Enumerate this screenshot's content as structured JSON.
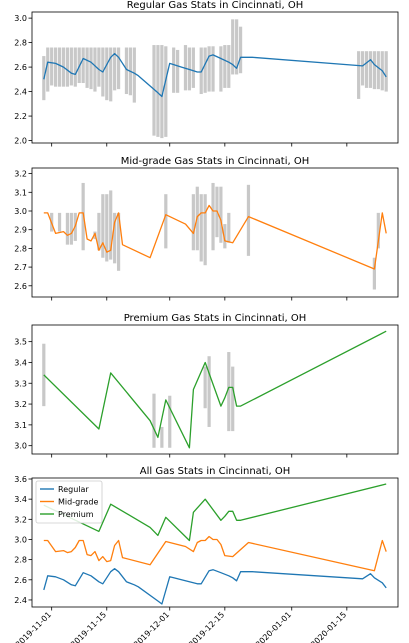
{
  "colors": {
    "regular": "#1f77b4",
    "midgrade": "#ff7f0e",
    "premium": "#2ca02c",
    "range_bar": "#c8c8c8"
  },
  "x_ticks": [
    "2019-11-01",
    "2019-11-15",
    "2019-12-01",
    "2019-12-15",
    "2020-01-01",
    "2020-01-15"
  ],
  "chart_data": [
    {
      "type": "line",
      "title": "Regular Gas Stats in Cincinnati, OH",
      "xlabel": "",
      "ylabel": "",
      "ylim": [
        1.98,
        3.05
      ],
      "yticks": [
        2.0,
        2.2,
        2.4,
        2.6,
        2.8,
        3.0
      ],
      "ytick_labels": [
        "2.0",
        "2.2",
        "2.4",
        "2.6",
        "2.8",
        "3.0"
      ],
      "grid": false,
      "series": [
        {
          "color": "#1f77b4",
          "points": [
            [
              "2019-10-30",
              2.5
            ],
            [
              "2019-10-31",
              2.64
            ],
            [
              "2019-11-02",
              2.63
            ],
            [
              "2019-11-04",
              2.6
            ],
            [
              "2019-11-06",
              2.55
            ],
            [
              "2019-11-07",
              2.54
            ],
            [
              "2019-11-09",
              2.67
            ],
            [
              "2019-11-11",
              2.64
            ],
            [
              "2019-11-13",
              2.58
            ],
            [
              "2019-11-14",
              2.56
            ],
            [
              "2019-11-16",
              2.68
            ],
            [
              "2019-11-17",
              2.71
            ],
            [
              "2019-11-18",
              2.68
            ],
            [
              "2019-11-20",
              2.58
            ],
            [
              "2019-11-22",
              2.55
            ],
            [
              "2019-11-23",
              2.53
            ],
            [
              "2019-11-28",
              2.39
            ],
            [
              "2019-11-29",
              2.36
            ],
            [
              "2019-12-01",
              2.63
            ],
            [
              "2019-12-02",
              2.62
            ],
            [
              "2019-12-04",
              2.6
            ],
            [
              "2019-12-06",
              2.58
            ],
            [
              "2019-12-08",
              2.56
            ],
            [
              "2019-12-09",
              2.56
            ],
            [
              "2019-12-11",
              2.69
            ],
            [
              "2019-12-12",
              2.7
            ],
            [
              "2019-12-14",
              2.67
            ],
            [
              "2019-12-16",
              2.64
            ],
            [
              "2019-12-17",
              2.62
            ],
            [
              "2019-12-18",
              2.59
            ],
            [
              "2019-12-19",
              2.68
            ],
            [
              "2019-12-22",
              2.68
            ],
            [
              "2020-01-19",
              2.61
            ],
            [
              "2020-01-21",
              2.66
            ],
            [
              "2020-01-22",
              2.62
            ],
            [
              "2020-01-24",
              2.57
            ],
            [
              "2020-01-25",
              2.52
            ]
          ]
        }
      ],
      "ranges": [
        [
          "2019-10-30",
          2.33,
          2.69
        ],
        [
          "2019-10-31",
          2.4,
          2.76
        ],
        [
          "2019-11-01",
          2.45,
          2.76
        ],
        [
          "2019-11-02",
          2.44,
          2.76
        ],
        [
          "2019-11-03",
          2.44,
          2.76
        ],
        [
          "2019-11-04",
          2.44,
          2.76
        ],
        [
          "2019-11-05",
          2.44,
          2.76
        ],
        [
          "2019-11-06",
          2.45,
          2.76
        ],
        [
          "2019-11-07",
          2.44,
          2.76
        ],
        [
          "2019-11-08",
          2.47,
          2.76
        ],
        [
          "2019-11-09",
          2.47,
          2.76
        ],
        [
          "2019-11-10",
          2.43,
          2.76
        ],
        [
          "2019-11-11",
          2.42,
          2.76
        ],
        [
          "2019-11-12",
          2.4,
          2.76
        ],
        [
          "2019-11-13",
          2.44,
          2.76
        ],
        [
          "2019-11-14",
          2.36,
          2.76
        ],
        [
          "2019-11-15",
          2.33,
          2.76
        ],
        [
          "2019-11-16",
          2.32,
          2.76
        ],
        [
          "2019-11-17",
          2.41,
          2.76
        ],
        [
          "2019-11-18",
          2.42,
          2.76
        ],
        [
          "2019-11-20",
          2.38,
          2.76
        ],
        [
          "2019-11-21",
          2.37,
          2.76
        ],
        [
          "2019-11-22",
          2.31,
          2.76
        ],
        [
          "2019-11-27",
          2.04,
          2.78
        ],
        [
          "2019-11-28",
          2.03,
          2.78
        ],
        [
          "2019-11-29",
          2.02,
          2.78
        ],
        [
          "2019-11-30",
          2.03,
          2.77
        ],
        [
          "2019-12-02",
          2.39,
          2.76
        ],
        [
          "2019-12-03",
          2.39,
          2.74
        ],
        [
          "2019-12-05",
          2.41,
          2.78
        ],
        [
          "2019-12-06",
          2.41,
          2.76
        ],
        [
          "2019-12-07",
          2.43,
          2.76
        ],
        [
          "2019-12-09",
          2.38,
          2.76
        ],
        [
          "2019-12-10",
          2.39,
          2.76
        ],
        [
          "2019-12-11",
          2.4,
          2.77
        ],
        [
          "2019-12-12",
          2.4,
          2.77
        ],
        [
          "2019-12-14",
          2.4,
          2.77
        ],
        [
          "2019-12-15",
          2.43,
          2.78
        ],
        [
          "2019-12-16",
          2.43,
          2.78
        ],
        [
          "2019-12-17",
          2.54,
          2.99
        ],
        [
          "2019-12-18",
          2.54,
          2.99
        ],
        [
          "2019-12-19",
          2.55,
          2.93
        ],
        [
          "2020-01-18",
          2.34,
          2.73
        ],
        [
          "2020-01-19",
          2.45,
          2.73
        ],
        [
          "2020-01-20",
          2.43,
          2.73
        ],
        [
          "2020-01-21",
          2.43,
          2.73
        ],
        [
          "2020-01-22",
          2.42,
          2.73
        ],
        [
          "2020-01-23",
          2.42,
          2.73
        ],
        [
          "2020-01-24",
          2.41,
          2.73
        ],
        [
          "2020-01-25",
          2.4,
          2.73
        ]
      ]
    },
    {
      "type": "line",
      "title": "Mid-grade Gas Stats in Cincinnati, OH",
      "xlabel": "",
      "ylabel": "",
      "ylim": [
        2.54,
        3.23
      ],
      "yticks": [
        2.6,
        2.7,
        2.8,
        2.9,
        3.0,
        3.1,
        3.2
      ],
      "ytick_labels": [
        "2.6",
        "2.7",
        "2.8",
        "2.9",
        "3.0",
        "3.1",
        "3.2"
      ],
      "grid": false,
      "series": [
        {
          "color": "#ff7f0e",
          "points": [
            [
              "2019-10-30",
              2.99
            ],
            [
              "2019-10-31",
              2.99
            ],
            [
              "2019-11-02",
              2.88
            ],
            [
              "2019-11-04",
              2.89
            ],
            [
              "2019-11-05",
              2.87
            ],
            [
              "2019-11-06",
              2.88
            ],
            [
              "2019-11-07",
              2.92
            ],
            [
              "2019-11-08",
              2.99
            ],
            [
              "2019-11-09",
              2.99
            ],
            [
              "2019-11-10",
              2.85
            ],
            [
              "2019-11-11",
              2.84
            ],
            [
              "2019-11-12",
              2.88
            ],
            [
              "2019-11-13",
              2.79
            ],
            [
              "2019-11-14",
              2.83
            ],
            [
              "2019-11-15",
              2.78
            ],
            [
              "2019-11-16",
              2.79
            ],
            [
              "2019-11-17",
              2.94
            ],
            [
              "2019-11-18",
              2.99
            ],
            [
              "2019-11-19",
              2.82
            ],
            [
              "2019-11-26",
              2.75
            ],
            [
              "2019-11-30",
              2.98
            ],
            [
              "2019-12-04",
              2.94
            ],
            [
              "2019-12-05",
              2.93
            ],
            [
              "2019-12-07",
              2.88
            ],
            [
              "2019-12-08",
              2.97
            ],
            [
              "2019-12-09",
              2.99
            ],
            [
              "2019-12-10",
              2.99
            ],
            [
              "2019-12-11",
              3.03
            ],
            [
              "2019-12-12",
              3.0
            ],
            [
              "2019-12-13",
              3.0
            ],
            [
              "2019-12-14",
              2.95
            ],
            [
              "2019-12-15",
              2.84
            ],
            [
              "2019-12-17",
              2.83
            ],
            [
              "2019-12-21",
              2.97
            ],
            [
              "2020-01-22",
              2.69
            ],
            [
              "2020-01-24",
              2.99
            ],
            [
              "2020-01-25",
              2.88
            ]
          ]
        }
      ],
      "ranges": [
        [
          "2019-11-01",
          2.89,
          2.99
        ],
        [
          "2019-11-03",
          2.89,
          2.99
        ],
        [
          "2019-11-05",
          2.82,
          2.99
        ],
        [
          "2019-11-06",
          2.82,
          2.99
        ],
        [
          "2019-11-07",
          2.84,
          2.99
        ],
        [
          "2019-11-09",
          2.79,
          3.15
        ],
        [
          "2019-11-12",
          2.85,
          2.89
        ],
        [
          "2019-11-13",
          2.79,
          2.99
        ],
        [
          "2019-11-14",
          2.75,
          3.09
        ],
        [
          "2019-11-15",
          2.73,
          3.09
        ],
        [
          "2019-11-16",
          2.74,
          3.11
        ],
        [
          "2019-11-17",
          2.72,
          2.99
        ],
        [
          "2019-11-18",
          2.68,
          2.99
        ],
        [
          "2019-11-30",
          2.8,
          3.09
        ],
        [
          "2019-12-07",
          2.79,
          3.09
        ],
        [
          "2019-12-08",
          2.79,
          3.13
        ],
        [
          "2019-12-09",
          2.73,
          3.09
        ],
        [
          "2019-12-10",
          2.71,
          3.09
        ],
        [
          "2019-12-12",
          2.79,
          3.15
        ],
        [
          "2019-12-13",
          2.86,
          3.13
        ],
        [
          "2019-12-14",
          2.83,
          3.13
        ],
        [
          "2019-12-15",
          2.8,
          2.93
        ],
        [
          "2019-12-16",
          2.83,
          2.99
        ],
        [
          "2019-12-21",
          2.76,
          3.14
        ],
        [
          "2020-01-22",
          2.58,
          2.75
        ],
        [
          "2020-01-23",
          2.8,
          2.99
        ]
      ]
    },
    {
      "type": "line",
      "title": "Premium Gas Stats in Cincinnati, OH",
      "xlabel": "",
      "ylabel": "",
      "ylim": [
        2.96,
        3.58
      ],
      "yticks": [
        3.0,
        3.1,
        3.2,
        3.3,
        3.4,
        3.5
      ],
      "ytick_labels": [
        "3.0",
        "3.1",
        "3.2",
        "3.3",
        "3.4",
        "3.5"
      ],
      "grid": false,
      "series": [
        {
          "color": "#2ca02c",
          "points": [
            [
              "2019-10-30",
              3.34
            ],
            [
              "2019-11-13",
              3.08
            ],
            [
              "2019-11-16",
              3.35
            ],
            [
              "2019-11-26",
              3.12
            ],
            [
              "2019-11-28",
              3.04
            ],
            [
              "2019-11-30",
              3.22
            ],
            [
              "2019-12-06",
              2.99
            ],
            [
              "2019-12-07",
              3.27
            ],
            [
              "2019-12-10",
              3.4
            ],
            [
              "2019-12-14",
              3.19
            ],
            [
              "2019-12-15",
              3.23
            ],
            [
              "2019-12-16",
              3.28
            ],
            [
              "2019-12-17",
              3.28
            ],
            [
              "2019-12-18",
              3.19
            ],
            [
              "2019-12-19",
              3.19
            ],
            [
              "2020-01-25",
              3.55
            ]
          ]
        }
      ],
      "ranges": [
        [
          "2019-10-30",
          3.19,
          3.49
        ],
        [
          "2019-11-27",
          2.99,
          3.25
        ],
        [
          "2019-11-29",
          2.99,
          3.09
        ],
        [
          "2019-12-01",
          2.99,
          3.24
        ],
        [
          "2019-12-10",
          3.18,
          3.38
        ],
        [
          "2019-12-11",
          3.09,
          3.43
        ],
        [
          "2019-12-16",
          3.07,
          3.45
        ],
        [
          "2019-12-17",
          3.07,
          3.38
        ]
      ]
    },
    {
      "type": "line",
      "title": "All Gas Stats in Cincinnati, OH",
      "xlabel": "",
      "ylabel": "",
      "ylim": [
        2.33,
        3.61
      ],
      "yticks": [
        2.4,
        2.6,
        2.8,
        3.0,
        3.2,
        3.4,
        3.6
      ],
      "ytick_labels": [
        "2.4",
        "2.6",
        "2.8",
        "3.0",
        "3.2",
        "3.4",
        "3.6"
      ],
      "grid": false,
      "legend": "top-left",
      "series_refs": [
        {
          "name": "Regular",
          "from": 0,
          "color": "#1f77b4"
        },
        {
          "name": "Mid-grade",
          "from": 1,
          "color": "#ff7f0e"
        },
        {
          "name": "Premium",
          "from": 2,
          "color": "#2ca02c"
        }
      ]
    }
  ]
}
